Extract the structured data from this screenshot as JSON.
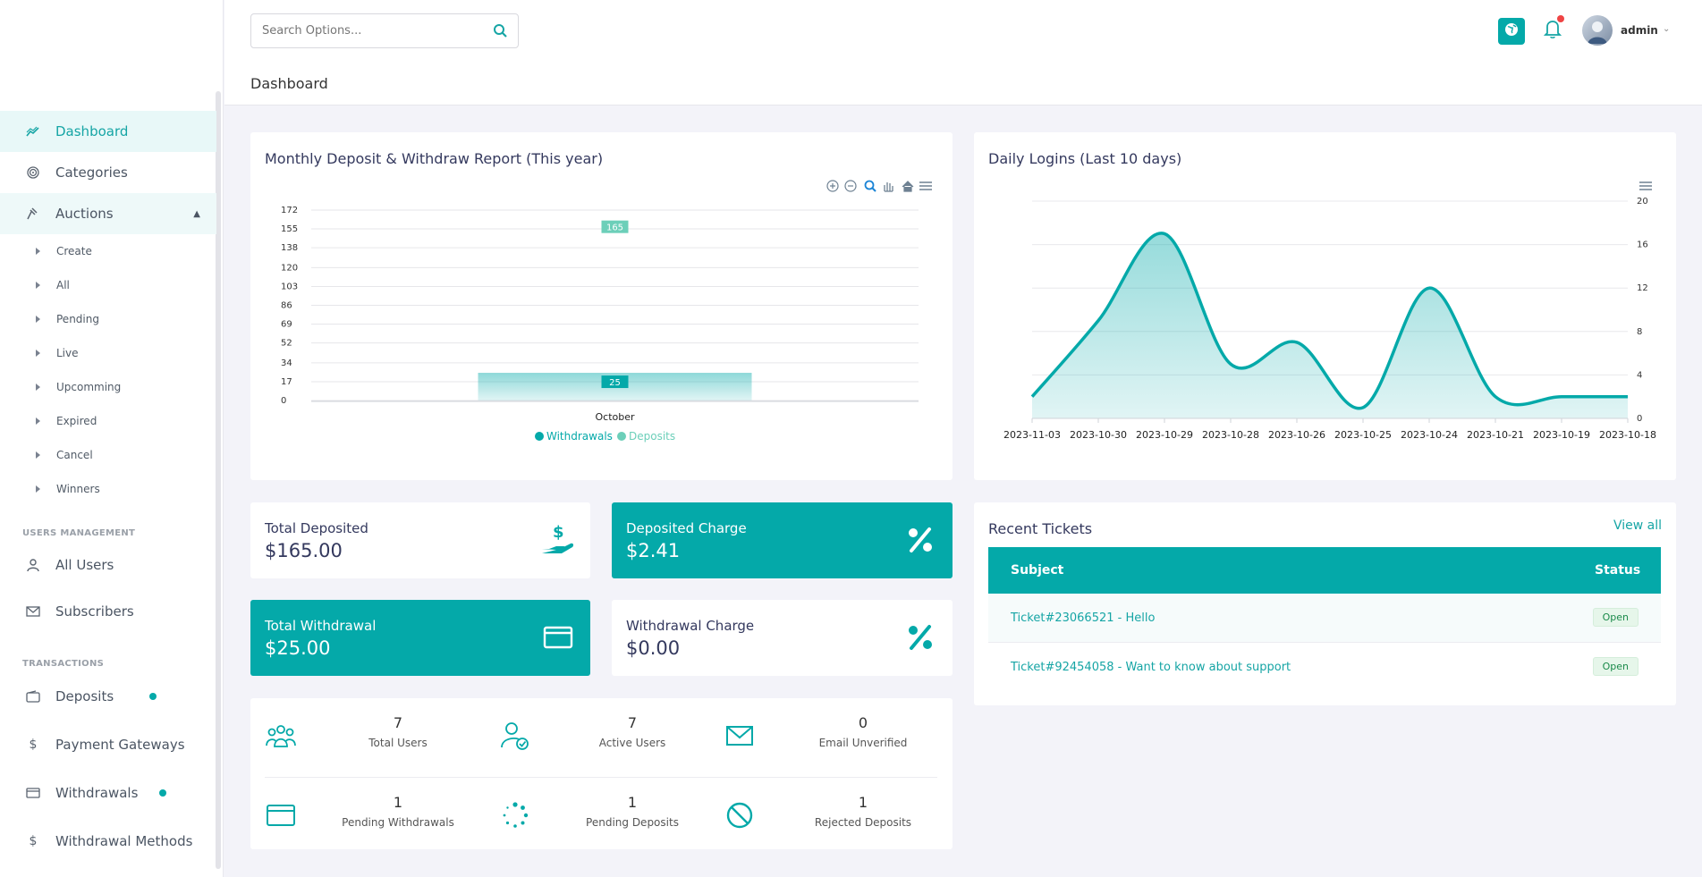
{
  "sidebar": {
    "items": [
      {
        "label": "Dashboard",
        "icon": "chart-line-icon"
      },
      {
        "label": "Categories",
        "icon": "fingerprint-icon"
      },
      {
        "label": "Auctions",
        "icon": "gavel-icon"
      }
    ],
    "auction_sub": [
      "Create",
      "All",
      "Pending",
      "Live",
      "Upcomming",
      "Expired",
      "Cancel",
      "Winners"
    ],
    "section_users": "USERS MANAGEMENT",
    "users_items": [
      {
        "label": "All Users",
        "icon": "user-icon"
      },
      {
        "label": "Subscribers",
        "icon": "mail-icon"
      }
    ],
    "section_transactions": "TRANSACTIONS",
    "tx_items": [
      {
        "label": "Deposits",
        "icon": "wallet-icon"
      },
      {
        "label": "Payment Gateways",
        "icon": "dollar-icon"
      },
      {
        "label": "Withdrawals",
        "icon": "card-icon"
      },
      {
        "label": "Withdrawal Methods",
        "icon": "dollar-icon"
      }
    ]
  },
  "topbar": {
    "search_placeholder": "Search Options...",
    "username": "admin"
  },
  "page": {
    "title": "Dashboard"
  },
  "monthly": {
    "title": "Monthly Deposit & Withdraw Report (This year)"
  },
  "logins": {
    "title": "Daily Logins (Last 10 days)"
  },
  "stats": {
    "total_deposited": {
      "label": "Total Deposited",
      "value": "$165.00"
    },
    "deposited_charge": {
      "label": "Deposited Charge",
      "value": "$2.41"
    },
    "total_withdrawal": {
      "label": "Total Withdrawal",
      "value": "$25.00"
    },
    "withdrawal_charge": {
      "label": "Withdrawal Charge",
      "value": "$0.00"
    }
  },
  "mini_stats": [
    {
      "value": "7",
      "label": "Total Users",
      "icon": "users-group-icon"
    },
    {
      "value": "7",
      "label": "Active Users",
      "icon": "user-check-icon"
    },
    {
      "value": "0",
      "label": "Email Unverified",
      "icon": "envelope-icon"
    },
    {
      "value": "1",
      "label": "Pending Withdrawals",
      "icon": "card-icon"
    },
    {
      "value": "1",
      "label": "Pending Deposits",
      "icon": "spinner-icon"
    },
    {
      "value": "1",
      "label": "Rejected Deposits",
      "icon": "ban-icon"
    }
  ],
  "tickets": {
    "title": "Recent Tickets",
    "view_all": "View all",
    "col_subject": "Subject",
    "col_status": "Status",
    "rows": [
      {
        "subject": "Ticket#23066521 - Hello",
        "status": "Open"
      },
      {
        "subject": "Ticket#92454058 - Want to know about support",
        "status": "Open"
      }
    ]
  },
  "colors": {
    "accent": "#04a9a9",
    "deposits": "#6ccfb9"
  },
  "chart_data": [
    {
      "type": "bar",
      "title": "Monthly Deposit & Withdraw Report (This year)",
      "categories": [
        "October"
      ],
      "series": [
        {
          "name": "Withdrawals",
          "values": [
            25
          ]
        },
        {
          "name": "Deposits",
          "values": [
            165
          ]
        }
      ],
      "yticks": [
        0,
        17,
        34,
        52,
        69,
        86,
        103,
        120,
        138,
        155,
        172
      ],
      "ylim": [
        0,
        172
      ],
      "legend": "bottom"
    },
    {
      "type": "area",
      "title": "Daily Logins (Last 10 days)",
      "x": [
        "2023-11-03",
        "2023-10-30",
        "2023-10-29",
        "2023-10-28",
        "2023-10-26",
        "2023-10-25",
        "2023-10-24",
        "2023-10-21",
        "2023-10-19",
        "2023-10-18"
      ],
      "values": [
        2,
        9,
        17,
        5,
        7,
        1,
        12,
        2,
        2,
        2
      ],
      "yticks": [
        0,
        4,
        8,
        12,
        16,
        20
      ],
      "ylim": [
        0,
        20
      ],
      "yaxis_side": "right"
    }
  ]
}
